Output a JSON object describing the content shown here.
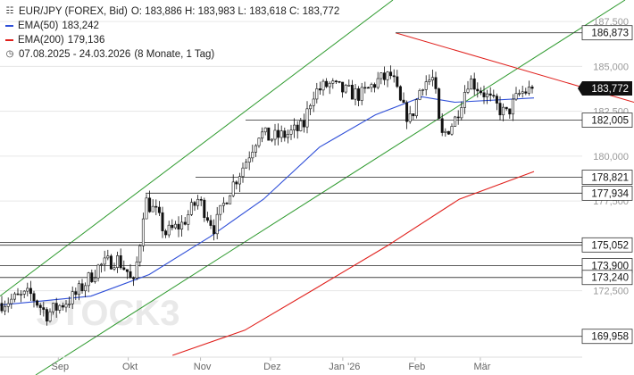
{
  "header": {
    "symbol": "EUR/JPY (FOREX, Bid)",
    "ohlc": "O: 183,886  H: 183,983  L: 183,618  C: 183,772",
    "ema50_label": "EMA(50)",
    "ema50_value": "183,242",
    "ema200_label": "EMA(200)",
    "ema200_value": "179,136",
    "period": "07.08.2025 - 24.03.2026",
    "period_detail": "(8 Monate, 1 Tag)"
  },
  "colors": {
    "ema50": "#2f4fd8",
    "ema200": "#e0201c",
    "channel": "#2e9a2e",
    "resistance": "#e0201c",
    "candle": "#111111",
    "price_badge": "#111111",
    "level_badge_border": "#333333",
    "grid": "#e6e6e6"
  },
  "watermark": "STOCK3",
  "chart_data": {
    "type": "candlestick",
    "x_ticks": [
      "Sep",
      "Okt",
      "Nov",
      "Dez",
      "Jan '26",
      "Feb",
      "Mär"
    ],
    "y_ticks": [
      "172,500",
      "175,000",
      "177,500",
      "180,000",
      "182,500",
      "185,000",
      "187,500"
    ],
    "ylim": [
      168.8,
      188.3
    ],
    "current_price": "183,772",
    "levels": [
      "186,873",
      "182,005",
      "178,821",
      "177,934",
      "175,052",
      "173,900",
      "173,240",
      "169,958"
    ],
    "partial_tick": "175,193",
    "ema50_last": 183.242,
    "ema200_last": 179.136,
    "close_path": [
      [
        "2025-08-07",
        171.8
      ],
      [
        "2025-08-20",
        172.3
      ],
      [
        "2025-08-27",
        171.2
      ],
      [
        "2025-09-08",
        172.2
      ],
      [
        "2025-09-18",
        173.8
      ],
      [
        "2025-09-26",
        174.3
      ],
      [
        "2025-10-01",
        173.5
      ],
      [
        "2025-10-03",
        172.6
      ],
      [
        "2025-10-06",
        175.2
      ],
      [
        "2025-10-08",
        177.6
      ],
      [
        "2025-10-13",
        176.8
      ],
      [
        "2025-10-17",
        175.7
      ],
      [
        "2025-10-24",
        176.2
      ],
      [
        "2025-10-31",
        177.6
      ],
      [
        "2025-11-07",
        176.0
      ],
      [
        "2025-11-13",
        178.0
      ],
      [
        "2025-11-20",
        179.6
      ],
      [
        "2025-11-26",
        181.3
      ],
      [
        "2025-12-01",
        181.0
      ],
      [
        "2025-12-08",
        181.2
      ],
      [
        "2025-12-15",
        181.6
      ],
      [
        "2025-12-19",
        183.5
      ],
      [
        "2025-12-26",
        184.0
      ],
      [
        "2026-01-02",
        183.6
      ],
      [
        "2026-01-09",
        183.4
      ],
      [
        "2026-01-16",
        184.2
      ],
      [
        "2026-01-22",
        184.5
      ],
      [
        "2026-01-26",
        182.8
      ],
      [
        "2026-01-30",
        182.0
      ],
      [
        "2026-02-04",
        184.1
      ],
      [
        "2026-02-09",
        184.3
      ],
      [
        "2026-02-12",
        181.0
      ],
      [
        "2026-02-18",
        182.0
      ],
      [
        "2026-02-24",
        184.3
      ],
      [
        "2026-03-02",
        183.6
      ],
      [
        "2026-03-06",
        183.0
      ],
      [
        "2026-03-12",
        182.3
      ],
      [
        "2026-03-18",
        183.5
      ],
      [
        "2026-03-24",
        183.77
      ]
    ],
    "ema50_path": [
      [
        "2025-08-07",
        171.7
      ],
      [
        "2025-09-15",
        172.2
      ],
      [
        "2025-10-10",
        173.4
      ],
      [
        "2025-11-05",
        175.5
      ],
      [
        "2025-11-28",
        177.6
      ],
      [
        "2025-12-22",
        180.5
      ],
      [
        "2026-01-15",
        182.3
      ],
      [
        "2026-02-04",
        183.3
      ],
      [
        "2026-02-18",
        183.0
      ],
      [
        "2026-03-24",
        183.24
      ]
    ],
    "ema200_path": [
      [
        "2025-10-20",
        168.9
      ],
      [
        "2025-11-20",
        170.3
      ],
      [
        "2025-12-20",
        172.6
      ],
      [
        "2026-01-20",
        175.0
      ],
      [
        "2026-02-20",
        177.6
      ],
      [
        "2026-03-24",
        179.14
      ]
    ]
  }
}
